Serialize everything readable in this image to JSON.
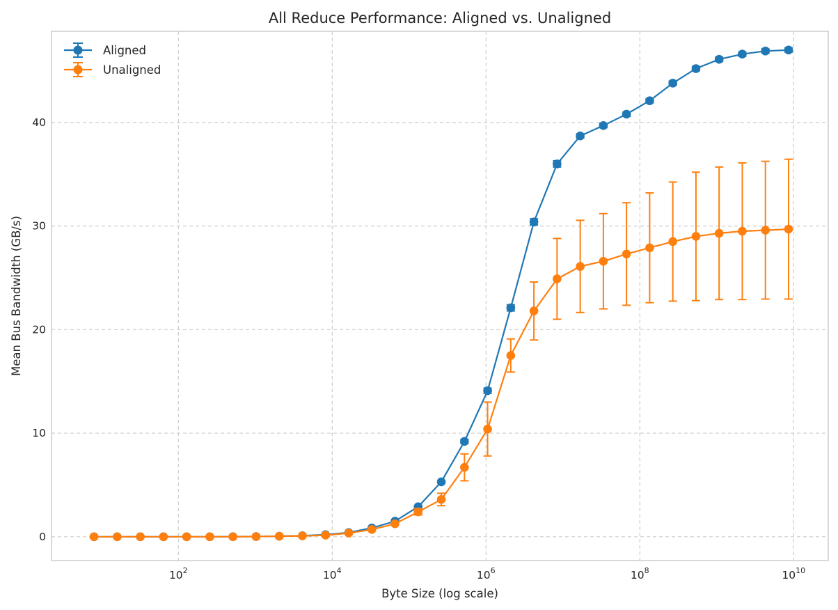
{
  "chart_data": {
    "type": "line",
    "title": "All Reduce Performance: Aligned vs. Unaligned",
    "xlabel": "Byte Size (log scale)",
    "ylabel": "Mean Bus Bandwidth (GB/s)",
    "xscale": "log2-spaced",
    "xlim_log10": [
      0.35,
      10.45
    ],
    "ylim": [
      -2.3,
      48.8
    ],
    "grid": true,
    "legend_position": "top-left",
    "x_ticks": [
      {
        "base": "10",
        "exp": "2",
        "value_log10": 2
      },
      {
        "base": "10",
        "exp": "4",
        "value_log10": 4
      },
      {
        "base": "10",
        "exp": "6",
        "value_log10": 6
      },
      {
        "base": "10",
        "exp": "8",
        "value_log10": 8
      },
      {
        "base": "10",
        "exp": "10",
        "value_log10": 10
      }
    ],
    "y_ticks": [
      {
        "label": "0",
        "value": 0
      },
      {
        "label": "10",
        "value": 10
      },
      {
        "label": "20",
        "value": 20
      },
      {
        "label": "30",
        "value": 30
      },
      {
        "label": "40",
        "value": 40
      }
    ],
    "x_exponents_base2": [
      3,
      4,
      5,
      6,
      7,
      8,
      9,
      10,
      11,
      12,
      13,
      14,
      15,
      16,
      17,
      18,
      19,
      20,
      21,
      22,
      23,
      24,
      25,
      26,
      27,
      28,
      29,
      30,
      31,
      32,
      33
    ],
    "series": [
      {
        "name": "Aligned",
        "color": "#1f77b4",
        "values": [
          0.0,
          0.0,
          0.0,
          0.0,
          0.0,
          0.0,
          0.01,
          0.02,
          0.05,
          0.1,
          0.2,
          0.4,
          0.85,
          1.5,
          2.9,
          5.3,
          9.2,
          14.1,
          22.1,
          30.4,
          36.0,
          38.7,
          39.7,
          40.8,
          42.1,
          43.8,
          45.2,
          46.1,
          46.6,
          46.9,
          47.0
        ],
        "errors": [
          0,
          0,
          0,
          0,
          0,
          0,
          0,
          0,
          0,
          0,
          0,
          0,
          0.05,
          0.05,
          0.1,
          0.1,
          0.2,
          0.25,
          0.3,
          0.3,
          0.3,
          0.2,
          0.2,
          0.2,
          0.2,
          0.2,
          0.2,
          0.2,
          0.2,
          0.2,
          0.2
        ]
      },
      {
        "name": "Unaligned",
        "color": "#ff7f0e",
        "values": [
          0.0,
          0.0,
          0.0,
          0.0,
          0.0,
          0.0,
          0.0,
          0.02,
          0.05,
          0.08,
          0.15,
          0.35,
          0.7,
          1.25,
          2.4,
          3.6,
          6.7,
          10.4,
          17.5,
          21.8,
          24.9,
          26.1,
          26.6,
          27.3,
          27.9,
          28.5,
          29.0,
          29.3,
          29.5,
          29.6,
          29.7
        ],
        "errors": [
          0,
          0,
          0,
          0,
          0,
          0,
          0,
          0,
          0,
          0,
          0,
          0,
          0.1,
          0.15,
          0.3,
          0.6,
          1.3,
          2.6,
          1.6,
          2.8,
          3.9,
          4.45,
          4.6,
          4.95,
          5.3,
          5.75,
          6.2,
          6.4,
          6.6,
          6.65,
          6.75
        ]
      }
    ]
  }
}
